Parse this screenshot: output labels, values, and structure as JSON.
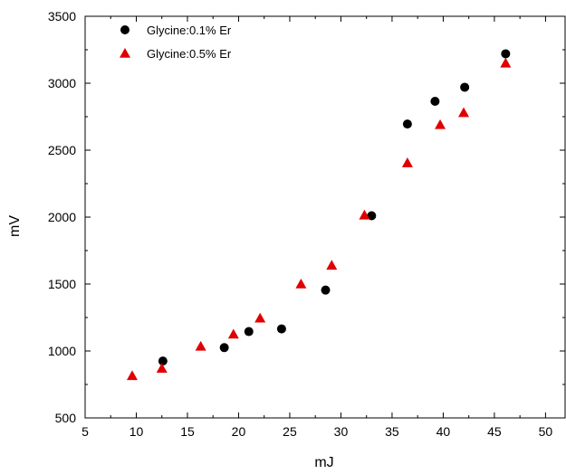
{
  "chart_data": {
    "type": "scatter",
    "title": "",
    "xlabel": "mJ",
    "ylabel": "mV",
    "xlim": [
      5,
      52
    ],
    "ylim": [
      500,
      3500
    ],
    "xticks": [
      5,
      10,
      15,
      20,
      25,
      30,
      35,
      40,
      45,
      50
    ],
    "yticks": [
      500,
      1000,
      1500,
      2000,
      2500,
      3000,
      3500
    ],
    "grid": false,
    "legend_position": "top-left",
    "series": [
      {
        "name": "Glycine:0.1% Er",
        "marker": "circle",
        "color": "#000000",
        "points": [
          {
            "x": 12.6,
            "y": 925
          },
          {
            "x": 18.6,
            "y": 1025
          },
          {
            "x": 21.0,
            "y": 1145
          },
          {
            "x": 24.2,
            "y": 1165
          },
          {
            "x": 28.5,
            "y": 1455
          },
          {
            "x": 33.0,
            "y": 2010
          },
          {
            "x": 36.5,
            "y": 2695
          },
          {
            "x": 39.2,
            "y": 2865
          },
          {
            "x": 42.1,
            "y": 2970
          },
          {
            "x": 46.1,
            "y": 3220
          }
        ]
      },
      {
        "name": "Glycine:0.5% Er",
        "marker": "triangle",
        "color": "#e00000",
        "points": [
          {
            "x": 9.6,
            "y": 815
          },
          {
            "x": 12.5,
            "y": 870
          },
          {
            "x": 16.3,
            "y": 1035
          },
          {
            "x": 19.5,
            "y": 1125
          },
          {
            "x": 22.1,
            "y": 1245
          },
          {
            "x": 26.1,
            "y": 1500
          },
          {
            "x": 29.1,
            "y": 1640
          },
          {
            "x": 32.3,
            "y": 2015
          },
          {
            "x": 36.5,
            "y": 2405
          },
          {
            "x": 39.7,
            "y": 2690
          },
          {
            "x": 42.0,
            "y": 2780
          },
          {
            "x": 46.1,
            "y": 3150
          }
        ]
      }
    ]
  }
}
